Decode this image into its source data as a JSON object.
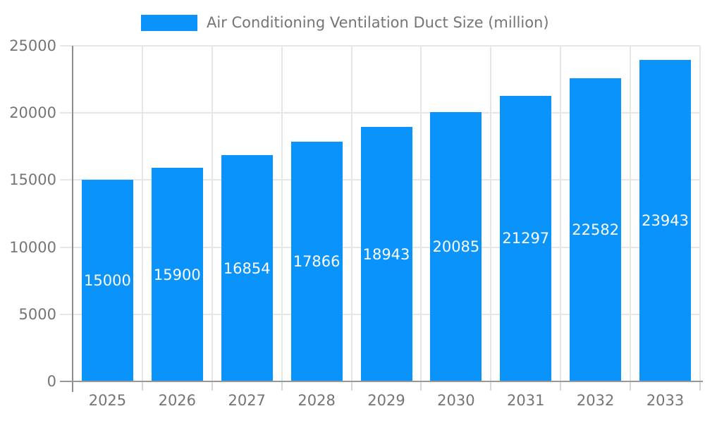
{
  "chart_data": {
    "type": "bar",
    "title": "Air Conditioning Ventilation Duct Size (million)",
    "categories": [
      "2025",
      "2026",
      "2027",
      "2028",
      "2029",
      "2030",
      "2031",
      "2032",
      "2033"
    ],
    "values": [
      15000,
      15900,
      16854,
      17866,
      18943,
      20085,
      21297,
      22582,
      23943
    ],
    "ylabel": "",
    "xlabel": "",
    "ylim": [
      0,
      25000
    ],
    "yticks": [
      0,
      5000,
      10000,
      15000,
      20000,
      25000
    ],
    "grid": true,
    "legend_position": "top",
    "bar_color": "#0a93fa",
    "bar_label_color": "#ffffff",
    "axis_text_color": "#757575",
    "gridline_color": "#e6e6e6"
  },
  "legend": {
    "label": "Air Conditioning Ventilation Duct Size (million)"
  }
}
